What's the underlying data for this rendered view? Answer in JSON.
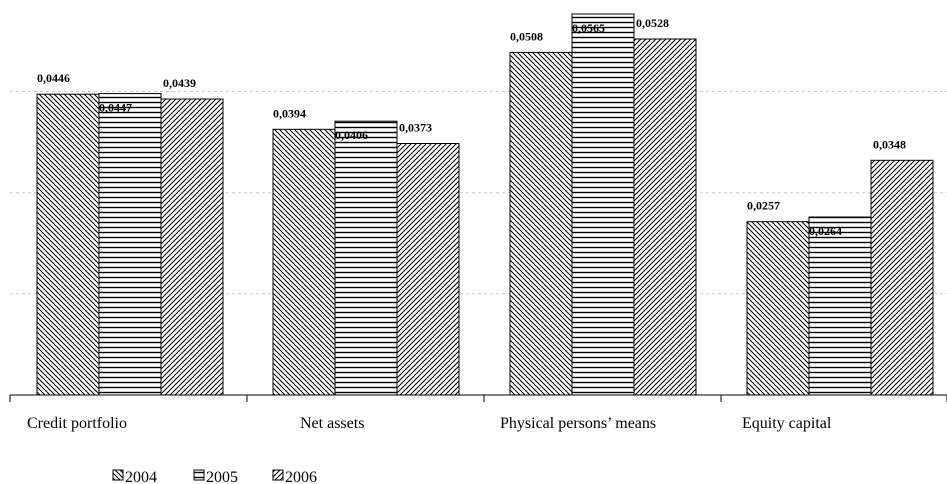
{
  "chart_data": {
    "type": "bar",
    "title": "",
    "xlabel": "",
    "ylabel": "",
    "categories": [
      "Credit portfolio",
      "Net assets",
      "Physical persons’ means",
      "Equity capital"
    ],
    "series": [
      {
        "name": "2004",
        "values": [
          0.0446,
          0.0394,
          0.0508,
          0.0257
        ],
        "labels": [
          "0,0446",
          "0,0394",
          "0,0508",
          "0,0257"
        ],
        "pattern": "diagonal-down"
      },
      {
        "name": "2005",
        "values": [
          0.0447,
          0.0406,
          0.0565,
          0.0264
        ],
        "labels": [
          "0,0447",
          "0,0406",
          "0,0565",
          "0,0264"
        ],
        "pattern": "horizontal"
      },
      {
        "name": "2006",
        "values": [
          0.0439,
          0.0373,
          0.0528,
          0.0348
        ],
        "labels": [
          "0,0439",
          "0,0373",
          "0,0528",
          "0,0348"
        ],
        "pattern": "diagonal-up"
      }
    ],
    "ylim": [
      0,
      0.0565
    ],
    "grid": true,
    "legend": "bottom-left"
  }
}
